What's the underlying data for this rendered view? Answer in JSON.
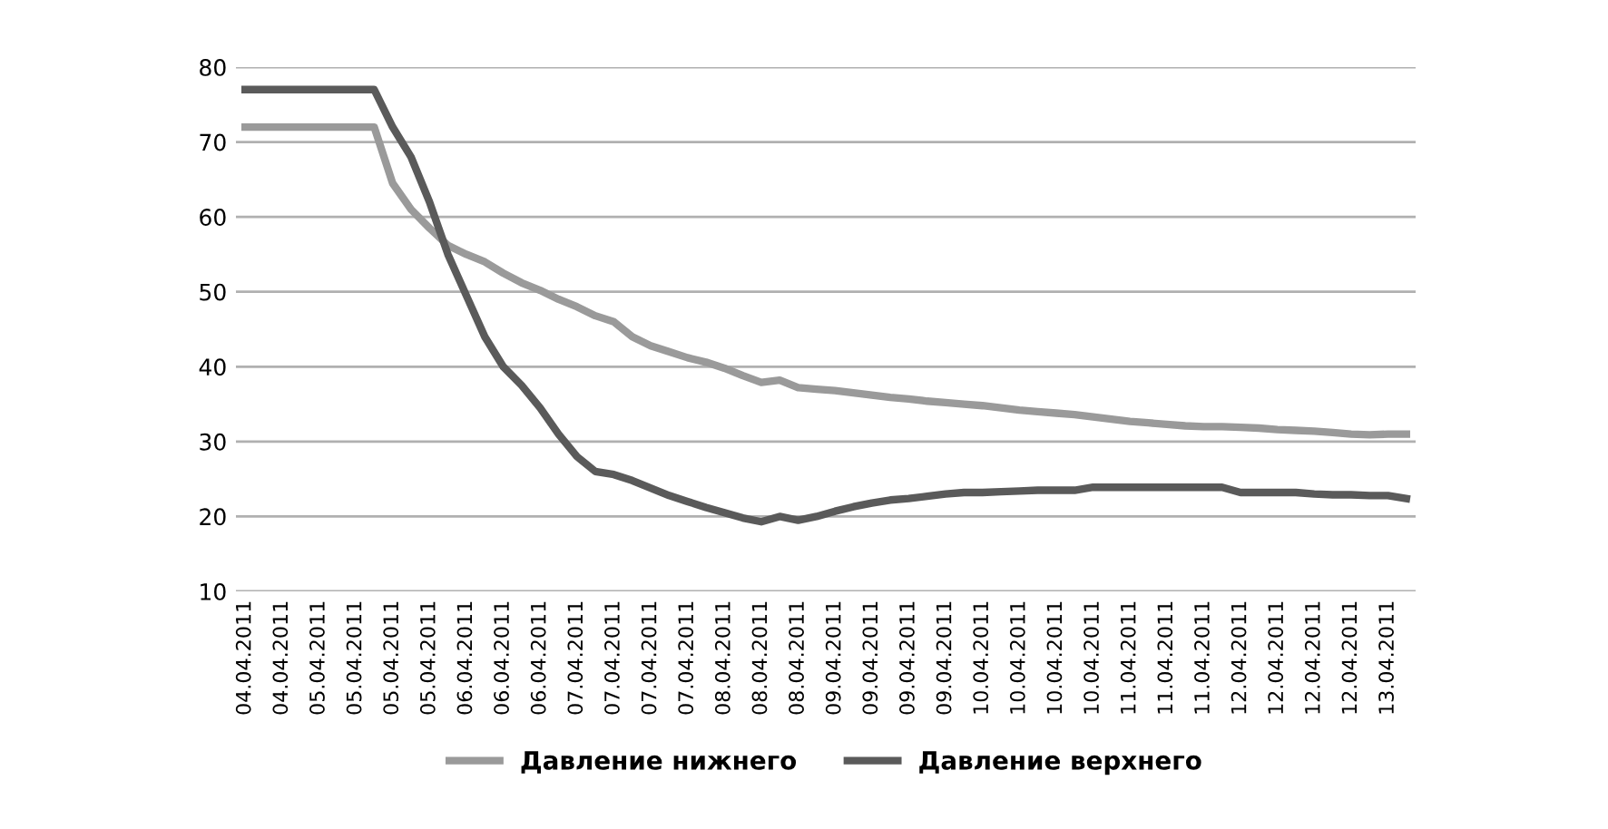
{
  "chart_data": {
    "type": "line",
    "categories": [
      "04.04.2011",
      null,
      "04.04.2011",
      null,
      "05.04.2011",
      null,
      "05.04.2011",
      null,
      "05.04.2011",
      null,
      "05.04.2011",
      null,
      "06.04.2011",
      null,
      "06.04.2011",
      null,
      "06.04.2011",
      null,
      "07.04.2011",
      null,
      "07.04.2011",
      null,
      "07.04.2011",
      null,
      "07.04.2011",
      null,
      "08.04.2011",
      null,
      "08.04.2011",
      null,
      "08.04.2011",
      null,
      "09.04.2011",
      null,
      "09.04.2011",
      null,
      "09.04.2011",
      null,
      "09.04.2011",
      null,
      "10.04.2011",
      null,
      "10.04.2011",
      null,
      "10.04.2011",
      null,
      "10.04.2011",
      null,
      "11.04.2011",
      null,
      "11.04.2011",
      null,
      "11.04.2011",
      null,
      "12.04.2011",
      null,
      "12.04.2011",
      null,
      "12.04.2011",
      null,
      "12.04.2011",
      null,
      "13.04.2011",
      null
    ],
    "series": [
      {
        "name": "Давление нижнего",
        "color": "#9a9a9a",
        "values": [
          72,
          72,
          72,
          72,
          72,
          72,
          72,
          72,
          64.5,
          61,
          58.5,
          56.2,
          55,
          54,
          52.5,
          51.2,
          50.2,
          49,
          48,
          46.8,
          46,
          44,
          42.8,
          42,
          41.2,
          40.6,
          39.8,
          38.8,
          37.9,
          38.2,
          37.2,
          37,
          36.8,
          36.5,
          36.2,
          35.9,
          35.7,
          35.4,
          35.2,
          35,
          34.8,
          34.5,
          34.2,
          34,
          33.8,
          33.6,
          33.3,
          33,
          32.7,
          32.5,
          32.3,
          32.1,
          32,
          32,
          31.9,
          31.8,
          31.6,
          31.5,
          31.4,
          31.2,
          31,
          30.9,
          31,
          31
        ]
      },
      {
        "name": "Давление верхнего",
        "color": "#5a5a5a",
        "values": [
          77,
          77,
          77,
          77,
          77,
          77,
          77,
          77,
          72,
          68,
          62,
          55,
          49.5,
          44,
          40,
          37.5,
          34.5,
          31,
          28,
          26,
          25.6,
          24.8,
          23.8,
          22.8,
          22,
          21.2,
          20.5,
          19.8,
          19.3,
          20,
          19.5,
          20,
          20.7,
          21.3,
          21.8,
          22.2,
          22.4,
          22.7,
          23,
          23.2,
          23.2,
          23.3,
          23.4,
          23.5,
          23.5,
          23.5,
          23.9,
          23.9,
          23.9,
          23.9,
          23.9,
          23.9,
          23.9,
          23.9,
          23.2,
          23.2,
          23.2,
          23.2,
          23,
          22.9,
          22.9,
          22.8,
          22.8,
          22.4
        ]
      }
    ],
    "ylim": [
      10,
      80
    ],
    "yticks": [
      10,
      20,
      30,
      40,
      50,
      60,
      70,
      80
    ],
    "grid": "y",
    "legend": "bottom",
    "line_style": "solid"
  }
}
